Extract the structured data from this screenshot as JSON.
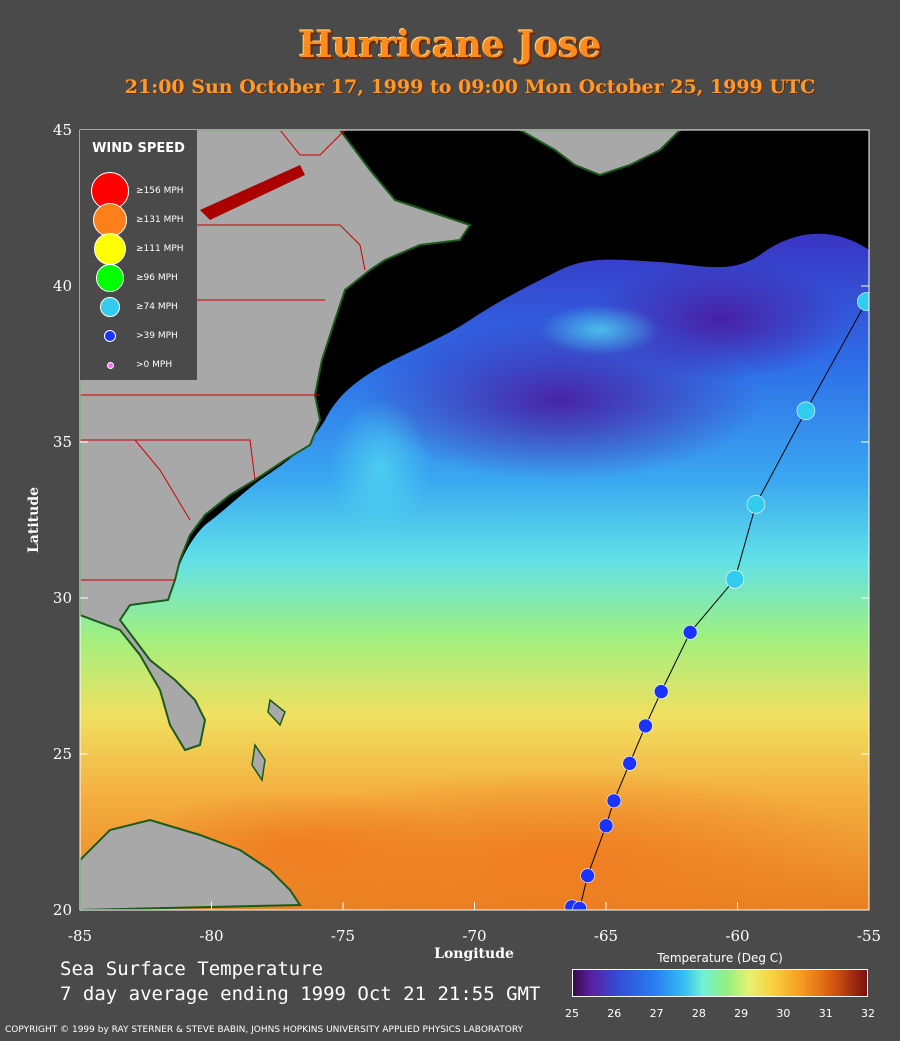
{
  "title": "Hurricane Jose",
  "subtitle": "21:00 Sun October 17, 1999 to 09:00 Mon October 25, 1999  UTC",
  "map": {
    "lon_range": [
      -85,
      -55
    ],
    "lat_range": [
      20,
      45
    ],
    "x_ticks": [
      "-85",
      "-80",
      "-75",
      "-70",
      "-65",
      "-60",
      "-55"
    ],
    "y_ticks": [
      "45",
      "40",
      "35",
      "30",
      "25",
      "20"
    ],
    "xlabel": "Longitude",
    "ylabel": "Latitude"
  },
  "legend": {
    "title": "WIND SPEED",
    "items": [
      {
        "label": "≥156 MPH",
        "color": "#ff0000"
      },
      {
        "label": "≥131 MPH",
        "color": "#ff7f1a"
      },
      {
        "label": "≥111 MPH",
        "color": "#ffff00"
      },
      {
        "label": "≥96 MPH",
        "color": "#00ff00"
      },
      {
        "label": "≥74 MPH",
        "color": "#33ccee"
      },
      {
        "label": ">39 MPH",
        "color": "#1a33ff"
      },
      {
        "label": ">0 MPH",
        "color": "#ff66ff"
      }
    ]
  },
  "track": [
    {
      "lon": -66.3,
      "lat": 20.1,
      "cat": ">39 MPH"
    },
    {
      "lon": -66.0,
      "lat": 20.05,
      "cat": ">39 MPH"
    },
    {
      "lon": -65.7,
      "lat": 21.1,
      "cat": ">39 MPH"
    },
    {
      "lon": -65.0,
      "lat": 22.7,
      "cat": ">39 MPH"
    },
    {
      "lon": -64.7,
      "lat": 23.5,
      "cat": ">39 MPH"
    },
    {
      "lon": -64.1,
      "lat": 24.7,
      "cat": ">39 MPH"
    },
    {
      "lon": -63.5,
      "lat": 25.9,
      "cat": ">39 MPH"
    },
    {
      "lon": -62.9,
      "lat": 27.0,
      "cat": ">39 MPH"
    },
    {
      "lon": -61.8,
      "lat": 28.9,
      "cat": ">39 MPH"
    },
    {
      "lon": -60.1,
      "lat": 30.6,
      "cat": "≥74 MPH"
    },
    {
      "lon": -59.3,
      "lat": 33.0,
      "cat": "≥74 MPH"
    },
    {
      "lon": -57.4,
      "lat": 36.0,
      "cat": "≥74 MPH"
    },
    {
      "lon": -55.1,
      "lat": 39.5,
      "cat": "≥74 MPH"
    }
  ],
  "sst_caption_line1": "Sea Surface Temperature",
  "sst_caption_line2": "7 day average ending 1999 Oct 21 21:55 GMT",
  "colorbar": {
    "title": "Temperature (Deg C)",
    "ticks": [
      "25",
      "26",
      "27",
      "28",
      "29",
      "30",
      "31",
      "32"
    ]
  },
  "copyright": "COPYRIGHT © 1999 by RAY STERNER & STEVE BABIN, JOHNS HOPKINS UNIVERSITY APPLIED PHYSICS LABORATORY"
}
